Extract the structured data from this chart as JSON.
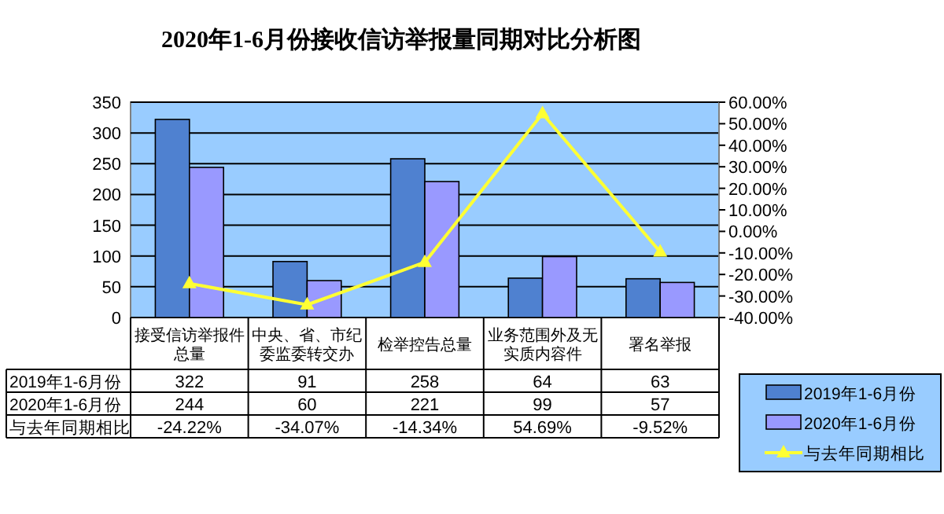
{
  "chart_data": {
    "type": "bar",
    "title": "2020年1-6月份接收信访举报量同期对比分析图",
    "categories": [
      "接受信访举报件总量",
      "中央、省、市纪委监委转交办",
      "检举控告总量",
      "业务范围外及无实质内容件",
      "署名举报"
    ],
    "series": [
      {
        "name": "2019年1-6月份",
        "color": "#4f81d0",
        "values": [
          322,
          91,
          258,
          64,
          63
        ],
        "value_labels": [
          "322",
          "91",
          "258",
          "64",
          "63"
        ]
      },
      {
        "name": "2020年1-6月份",
        "color": "#9999ff",
        "values": [
          244,
          60,
          221,
          99,
          57
        ],
        "value_labels": [
          "244",
          "60",
          "221",
          "99",
          "57"
        ]
      },
      {
        "name": "与去年同期相比",
        "type": "line",
        "axis": "y2",
        "color": "#ffff33",
        "marker": "triangle",
        "values": [
          -24.22,
          -34.07,
          -14.34,
          54.69,
          -9.52
        ],
        "value_labels": [
          "-24.22%",
          "-34.07%",
          "-14.34%",
          "54.69%",
          "-9.52%"
        ]
      }
    ],
    "ylim": [
      0,
      350
    ],
    "yticks": [
      0,
      50,
      100,
      150,
      200,
      250,
      300,
      350
    ],
    "y2lim": [
      -40,
      60
    ],
    "y2ticks": [
      {
        "value": 60,
        "label": "60.00%"
      },
      {
        "value": 50,
        "label": "50.00%"
      },
      {
        "value": 40,
        "label": "40.00%"
      },
      {
        "value": 30,
        "label": "30.00%"
      },
      {
        "value": 20,
        "label": "20.00%"
      },
      {
        "value": 10,
        "label": "10.00%"
      },
      {
        "value": 0,
        "label": "0.00%"
      },
      {
        "value": -10,
        "label": "-10.00%"
      },
      {
        "value": -20,
        "label": "-20.00%"
      },
      {
        "value": -30,
        "label": "-30.00%"
      },
      {
        "value": -40,
        "label": "-40.00%"
      }
    ],
    "grid": "y",
    "legend": "bottom right"
  }
}
